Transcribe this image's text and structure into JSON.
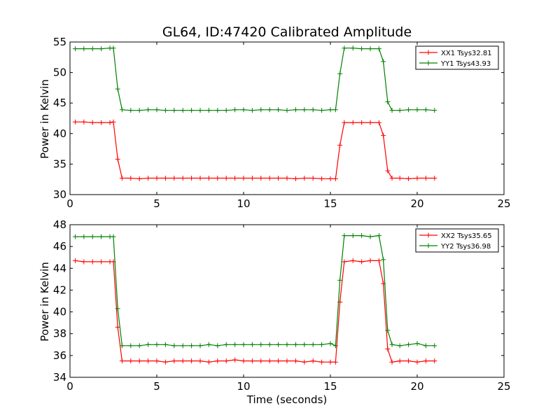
{
  "chart_data": [
    {
      "type": "line",
      "title": "GL64, ID:47420 Calibrated Amplitude",
      "xlabel": "",
      "ylabel": "Power in Kelvin",
      "xlim": [
        0,
        25
      ],
      "ylim": [
        30,
        55
      ],
      "xticks": [
        "0",
        "5",
        "10",
        "15",
        "20",
        "25"
      ],
      "yticks": [
        "30",
        "35",
        "40",
        "45",
        "50",
        "55"
      ],
      "legend_position": "top-right",
      "grid": false,
      "x": [
        0.3,
        0.8,
        1.3,
        1.8,
        2.3,
        2.5,
        2.75,
        3.0,
        3.5,
        4.0,
        4.5,
        5.0,
        5.5,
        6.0,
        6.5,
        7.0,
        7.5,
        8.0,
        8.5,
        9.0,
        9.5,
        10.0,
        10.5,
        11.0,
        11.5,
        12.0,
        12.5,
        13.0,
        13.5,
        14.0,
        14.5,
        15.0,
        15.3,
        15.55,
        15.8,
        16.3,
        16.8,
        17.3,
        17.8,
        18.05,
        18.3,
        18.55,
        19.0,
        19.5,
        20.0,
        20.5,
        21.0
      ],
      "series": [
        {
          "name": "XX1 Tsys32.81",
          "color": "#ff0000",
          "values": [
            41.9,
            41.9,
            41.8,
            41.8,
            41.8,
            41.9,
            35.8,
            32.7,
            32.7,
            32.6,
            32.7,
            32.7,
            32.7,
            32.7,
            32.7,
            32.7,
            32.7,
            32.7,
            32.7,
            32.7,
            32.7,
            32.7,
            32.7,
            32.7,
            32.7,
            32.7,
            32.7,
            32.6,
            32.7,
            32.7,
            32.6,
            32.6,
            32.6,
            38.1,
            41.8,
            41.8,
            41.8,
            41.8,
            41.8,
            39.7,
            33.9,
            32.7,
            32.7,
            32.6,
            32.7,
            32.7,
            32.7
          ]
        },
        {
          "name": "YY1 Tsys43.93",
          "color": "#008000",
          "values": [
            53.9,
            53.9,
            53.9,
            53.9,
            54.0,
            54.0,
            47.3,
            43.9,
            43.8,
            43.8,
            43.9,
            43.9,
            43.8,
            43.8,
            43.8,
            43.8,
            43.8,
            43.8,
            43.8,
            43.8,
            43.9,
            43.9,
            43.8,
            43.9,
            43.9,
            43.9,
            43.8,
            43.9,
            43.9,
            43.9,
            43.8,
            43.9,
            43.9,
            49.8,
            54.0,
            54.0,
            53.9,
            53.9,
            53.9,
            51.8,
            45.2,
            43.8,
            43.8,
            43.9,
            43.9,
            43.9,
            43.8
          ]
        }
      ]
    },
    {
      "type": "line",
      "title": "",
      "xlabel": "Time (seconds)",
      "ylabel": "Power in Kelvin",
      "xlim": [
        0,
        25
      ],
      "ylim": [
        34,
        48
      ],
      "xticks": [
        "0",
        "5",
        "10",
        "15",
        "20",
        "25"
      ],
      "yticks": [
        "34",
        "36",
        "38",
        "40",
        "42",
        "44",
        "46",
        "48"
      ],
      "legend_position": "top-right",
      "grid": false,
      "x": [
        0.3,
        0.8,
        1.3,
        1.8,
        2.3,
        2.5,
        2.75,
        3.0,
        3.5,
        4.0,
        4.5,
        5.0,
        5.5,
        6.0,
        6.5,
        7.0,
        7.5,
        8.0,
        8.5,
        9.0,
        9.5,
        10.0,
        10.5,
        11.0,
        11.5,
        12.0,
        12.5,
        13.0,
        13.5,
        14.0,
        14.5,
        15.0,
        15.3,
        15.55,
        15.8,
        16.3,
        16.8,
        17.3,
        17.8,
        18.05,
        18.3,
        18.55,
        19.0,
        19.5,
        20.0,
        20.5,
        21.0
      ],
      "series": [
        {
          "name": "XX2 Tsys35.65",
          "color": "#ff0000",
          "values": [
            44.7,
            44.6,
            44.6,
            44.6,
            44.6,
            44.6,
            38.6,
            35.5,
            35.5,
            35.5,
            35.5,
            35.5,
            35.4,
            35.5,
            35.5,
            35.5,
            35.5,
            35.4,
            35.5,
            35.5,
            35.6,
            35.5,
            35.5,
            35.5,
            35.5,
            35.5,
            35.5,
            35.5,
            35.4,
            35.5,
            35.4,
            35.4,
            35.4,
            40.9,
            44.6,
            44.7,
            44.6,
            44.7,
            44.7,
            42.6,
            36.6,
            35.4,
            35.5,
            35.5,
            35.4,
            35.5,
            35.5
          ]
        },
        {
          "name": "YY2 Tsys36.98",
          "color": "#008000",
          "values": [
            46.9,
            46.9,
            46.9,
            46.9,
            46.9,
            46.9,
            40.3,
            36.9,
            36.9,
            36.9,
            37.0,
            37.0,
            37.0,
            36.9,
            36.9,
            36.9,
            36.9,
            37.0,
            36.9,
            37.0,
            37.0,
            37.0,
            37.0,
            37.0,
            37.0,
            37.0,
            37.0,
            37.0,
            37.0,
            37.0,
            37.0,
            37.1,
            36.9,
            42.9,
            47.0,
            47.0,
            47.0,
            46.9,
            47.0,
            44.8,
            38.3,
            37.0,
            36.9,
            37.0,
            37.1,
            36.9,
            36.9
          ]
        }
      ]
    }
  ]
}
